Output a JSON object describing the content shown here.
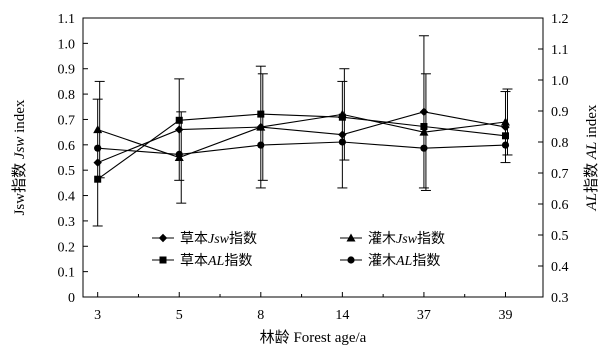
{
  "chart_data": {
    "type": "line",
    "categories": [
      "3",
      "5",
      "8",
      "14",
      "37",
      "39"
    ],
    "xlabel_cn": "林龄",
    "xlabel_en": "Forest age/a",
    "left_axis": {
      "label_en": "Jsw",
      "label_cn": "指数",
      "label_italic": "Jsw",
      "label_tail": " index",
      "ylim": [
        0,
        1.1
      ],
      "ticks": [
        "0",
        "0.1",
        "0.2",
        "0.3",
        "0.4",
        "0.5",
        "0.6",
        "0.7",
        "0.8",
        "0.9",
        "1.0",
        "1.1"
      ]
    },
    "right_axis": {
      "label_italic": "AL",
      "label_cn": "指数",
      "label_italic2": "AL",
      "label_tail": " index",
      "ylim": [
        0.3,
        1.2
      ],
      "ticks": [
        "0.3",
        "0.4",
        "0.5",
        "0.6",
        "0.7",
        "0.8",
        "0.9",
        "1.0",
        "1.1",
        "1.2"
      ]
    },
    "series": [
      {
        "name_pre": "草本",
        "name_ital": "Jsw",
        "name_post": "指数",
        "axis": "left",
        "marker": "diamond",
        "values": [
          0.53,
          0.66,
          0.67,
          0.64,
          0.73,
          0.67
        ],
        "errors": [
          0.25,
          0.2,
          0.24,
          0.21,
          0.3,
          0.14
        ]
      },
      {
        "name_pre": "灌木",
        "name_ital": "Jsw",
        "name_post": "指数",
        "axis": "left",
        "marker": "triangle",
        "values": [
          0.66,
          0.55,
          0.67,
          0.72,
          0.65,
          0.69
        ],
        "errors": [
          0.19,
          0.18,
          0.21,
          0.18,
          0.23,
          0.13
        ]
      },
      {
        "name_pre": "草本",
        "name_ital": "AL",
        "name_post": "指数",
        "axis": "right",
        "marker": "square",
        "values": [
          0.68,
          0.87,
          0.89,
          0.88,
          0.85,
          0.82
        ],
        "errors": [
          0.0,
          0.0,
          0.0,
          0.0,
          0.0,
          0.0
        ]
      },
      {
        "name_pre": "灌木",
        "name_ital": "AL",
        "name_post": "指数",
        "axis": "right",
        "marker": "circle",
        "values": [
          0.78,
          0.76,
          0.79,
          0.8,
          0.78,
          0.79
        ],
        "errors": [
          0.0,
          0.0,
          0.0,
          0.0,
          0.0,
          0.0
        ]
      }
    ],
    "legend_position": "bottom-center",
    "grid": false
  }
}
